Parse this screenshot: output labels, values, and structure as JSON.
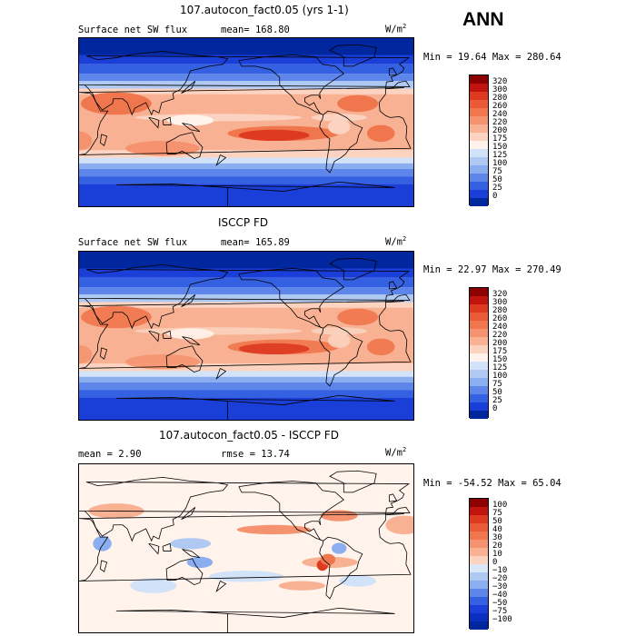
{
  "season": "ANN",
  "panels": [
    {
      "title": "107.autocon_fact0.05 (yrs 1-1)",
      "left_label": "Surface net SW flux",
      "stat_label": "mean=",
      "stat_value": "168.80",
      "units_base": "W/m",
      "units_exp": "2",
      "minmax": "Min =  19.64 Max = 280.64",
      "colorbar": {
        "labels": [
          "320",
          "300",
          "280",
          "260",
          "240",
          "220",
          "200",
          "175",
          "150",
          "125",
          "100",
          "75",
          "50",
          "25",
          "0"
        ],
        "colors": [
          "#8b0000",
          "#c2140f",
          "#dd3a20",
          "#ea5a36",
          "#f0764d",
          "#f59370",
          "#f8b293",
          "#fbd3c0",
          "#fff3ec",
          "#d2e2f8",
          "#b0c9f2",
          "#8aaeef",
          "#5e86ea",
          "#3460e2",
          "#1a3ed8",
          "#00279e"
        ]
      },
      "fill": "shortwave"
    },
    {
      "title": "ISCCP FD",
      "left_label": "Surface net SW flux",
      "stat_label": "mean=",
      "stat_value": "165.89",
      "units_base": "W/m",
      "units_exp": "2",
      "minmax": "Min =  22.97 Max = 270.49",
      "colorbar": {
        "labels": [
          "320",
          "300",
          "280",
          "260",
          "240",
          "220",
          "200",
          "175",
          "150",
          "125",
          "100",
          "75",
          "50",
          "25",
          "0"
        ],
        "colors": [
          "#8b0000",
          "#c2140f",
          "#dd3a20",
          "#ea5a36",
          "#f0764d",
          "#f59370",
          "#f8b293",
          "#fbd3c0",
          "#fff3ec",
          "#d2e2f8",
          "#b0c9f2",
          "#8aaeef",
          "#5e86ea",
          "#3460e2",
          "#1a3ed8",
          "#00279e"
        ]
      },
      "fill": "shortwave"
    },
    {
      "title": "107.autocon_fact0.05 - ISCCP FD",
      "left_label": "mean =    2.90",
      "stat_label": "rmse =",
      "stat_value": "13.74",
      "units_base": "W/m",
      "units_exp": "2",
      "minmax": "Min = -54.52  Max =  65.04",
      "colorbar": {
        "labels": [
          "100",
          "75",
          "50",
          "40",
          "30",
          "20",
          "10",
          "0",
          "−10",
          "−20",
          "−30",
          "−40",
          "−50",
          "−75",
          "−100"
        ],
        "colors": [
          "#8b0000",
          "#c2140f",
          "#dd3a20",
          "#ea5a36",
          "#f0764d",
          "#f59370",
          "#f8b293",
          "#fbd3c0",
          "#d8e6f8",
          "#b0c9f2",
          "#8aaeef",
          "#5e86ea",
          "#3460e2",
          "#1a3ed8",
          "#0a2fc0",
          "#00279e"
        ]
      },
      "fill": "difference"
    }
  ]
}
